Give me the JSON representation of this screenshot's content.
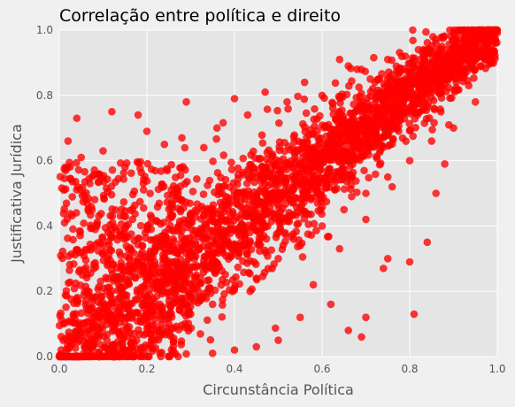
{
  "chart_data": {
    "type": "scatter",
    "title": "Correlação entre política e direito",
    "xlabel": "Circunstância Política",
    "ylabel": "Justificativa Jurídica",
    "xlim": [
      0.0,
      1.0
    ],
    "ylim": [
      0.0,
      1.0
    ],
    "xticks": [
      "0.0",
      "0.2",
      "0.4",
      "0.6",
      "0.8",
      "1.0"
    ],
    "yticks": [
      "0.0",
      "0.2",
      "0.4",
      "0.6",
      "0.8",
      "1.0"
    ],
    "grid": true,
    "marker_color": "#ff0000",
    "plot_background": "#e5e5e5",
    "series": [
      {
        "values": [
          [
            0.04,
            0.73
          ],
          [
            0.12,
            0.75
          ],
          [
            0.18,
            0.74
          ],
          [
            0.29,
            0.78
          ],
          [
            0.05,
            0.61
          ],
          [
            0.1,
            0.63
          ],
          [
            0.02,
            0.66
          ],
          [
            0.15,
            0.58
          ],
          [
            0.2,
            0.69
          ],
          [
            0.24,
            0.65
          ],
          [
            0.28,
            0.67
          ],
          [
            0.33,
            0.64
          ],
          [
            0.36,
            0.7
          ],
          [
            0.4,
            0.79
          ],
          [
            0.43,
            0.74
          ],
          [
            0.47,
            0.81
          ],
          [
            0.52,
            0.78
          ],
          [
            0.56,
            0.84
          ],
          [
            0.6,
            0.8
          ],
          [
            0.64,
            0.91
          ],
          [
            0.66,
            0.89
          ],
          [
            0.68,
            0.88
          ],
          [
            0.71,
            0.85
          ],
          [
            0.75,
            0.91
          ],
          [
            0.79,
            0.92
          ],
          [
            0.82,
            0.94
          ],
          [
            0.86,
            0.96
          ],
          [
            0.9,
            0.97
          ],
          [
            0.94,
            0.99
          ],
          [
            0.97,
            0.99
          ],
          [
            0.99,
            0.98
          ],
          [
            0.12,
            0.2
          ],
          [
            0.18,
            0.29
          ],
          [
            0.22,
            0.33
          ],
          [
            0.26,
            0.36
          ],
          [
            0.3,
            0.41
          ],
          [
            0.34,
            0.44
          ],
          [
            0.38,
            0.49
          ],
          [
            0.42,
            0.5
          ],
          [
            0.46,
            0.55
          ],
          [
            0.5,
            0.56
          ],
          [
            0.54,
            0.6
          ],
          [
            0.58,
            0.64
          ],
          [
            0.62,
            0.66
          ],
          [
            0.66,
            0.71
          ],
          [
            0.7,
            0.73
          ],
          [
            0.74,
            0.77
          ],
          [
            0.78,
            0.79
          ],
          [
            0.82,
            0.83
          ],
          [
            0.86,
            0.86
          ],
          [
            0.9,
            0.9
          ],
          [
            0.94,
            0.93
          ],
          [
            0.98,
            0.97
          ],
          [
            0.25,
            0.1
          ],
          [
            0.3,
            0.13
          ],
          [
            0.35,
            0.16
          ],
          [
            0.4,
            0.21
          ],
          [
            0.45,
            0.24
          ],
          [
            0.5,
            0.3
          ],
          [
            0.55,
            0.34
          ],
          [
            0.6,
            0.4
          ],
          [
            0.65,
            0.45
          ],
          [
            0.7,
            0.5
          ],
          [
            0.75,
            0.55
          ],
          [
            0.8,
            0.6
          ],
          [
            0.85,
            0.66
          ],
          [
            0.9,
            0.7
          ],
          [
            0.95,
            0.78
          ],
          [
            0.62,
            0.16
          ],
          [
            0.66,
            0.08
          ],
          [
            0.69,
            0.06
          ],
          [
            0.7,
            0.12
          ],
          [
            0.74,
            0.27
          ],
          [
            0.75,
            0.3
          ],
          [
            0.81,
            0.13
          ],
          [
            0.8,
            0.29
          ],
          [
            0.84,
            0.35
          ],
          [
            0.76,
            0.52
          ],
          [
            0.88,
            0.59
          ],
          [
            0.86,
            0.5
          ],
          [
            0.55,
            0.12
          ],
          [
            0.5,
            0.05
          ],
          [
            0.45,
            0.03
          ],
          [
            0.4,
            0.02
          ],
          [
            0.35,
            0.01
          ],
          [
            0.58,
            0.22
          ],
          [
            0.64,
            0.33
          ],
          [
            0.7,
            0.42
          ]
        ]
      }
    ]
  }
}
